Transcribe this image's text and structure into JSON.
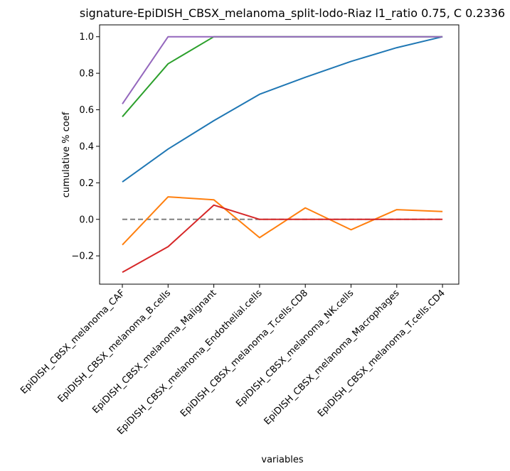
{
  "chart_data": {
    "type": "line",
    "title": "signature-EpiDISH_CBSX_melanoma_split-lodo-Riaz l1_ratio 0.75, C 0.2336",
    "xlabel": "variables",
    "ylabel": "cumulative % coef",
    "categories": [
      "EpiDISH_CBSX_melanoma_CAF",
      "EpiDISH_CBSX_melanoma_B.cells",
      "EpiDISH_CBSX_melanoma_Malignant",
      "EpiDISH_CBSX_melanoma_Endothelial.cells",
      "EpiDISH_CBSX_melanoma_T.cells.CD8",
      "EpiDISH_CBSX_melanoma_NK.cells",
      "EpiDISH_CBSX_melanoma_Macrophages",
      "EpiDISH_CBSX_melanoma_T.cells.CD4"
    ],
    "yticks": [
      "−0.2",
      "0.0",
      "0.2",
      "0.4",
      "0.6",
      "0.8",
      "1.0"
    ],
    "ytick_values": [
      -0.2,
      0.0,
      0.2,
      0.4,
      0.6,
      0.8,
      1.0
    ],
    "ylim": [
      -0.355,
      1.065
    ],
    "grid": false,
    "legend": "none",
    "series": [
      {
        "color": "#1f77b4",
        "values": [
          0.205,
          0.385,
          0.54,
          0.685,
          0.778,
          0.865,
          0.94,
          1.0
        ]
      },
      {
        "color": "#ff7f0e",
        "values": [
          -0.14,
          0.123,
          0.107,
          -0.1,
          0.063,
          -0.057,
          0.053,
          0.043
        ]
      },
      {
        "color": "#2ca02c",
        "values": [
          0.562,
          0.852,
          1.0,
          1.0,
          1.0,
          1.0,
          1.0,
          1.0
        ]
      },
      {
        "color": "#d62728",
        "values": [
          -0.29,
          -0.15,
          0.078,
          0.0,
          0.0,
          0.0,
          0.0,
          0.0
        ]
      },
      {
        "color": "#9467bd",
        "values": [
          0.632,
          1.0,
          1.0,
          1.0,
          1.0,
          1.0,
          1.0,
          1.0
        ]
      }
    ],
    "reference_line": {
      "value": 0.0,
      "color": "#808080",
      "style": "dashed"
    }
  }
}
